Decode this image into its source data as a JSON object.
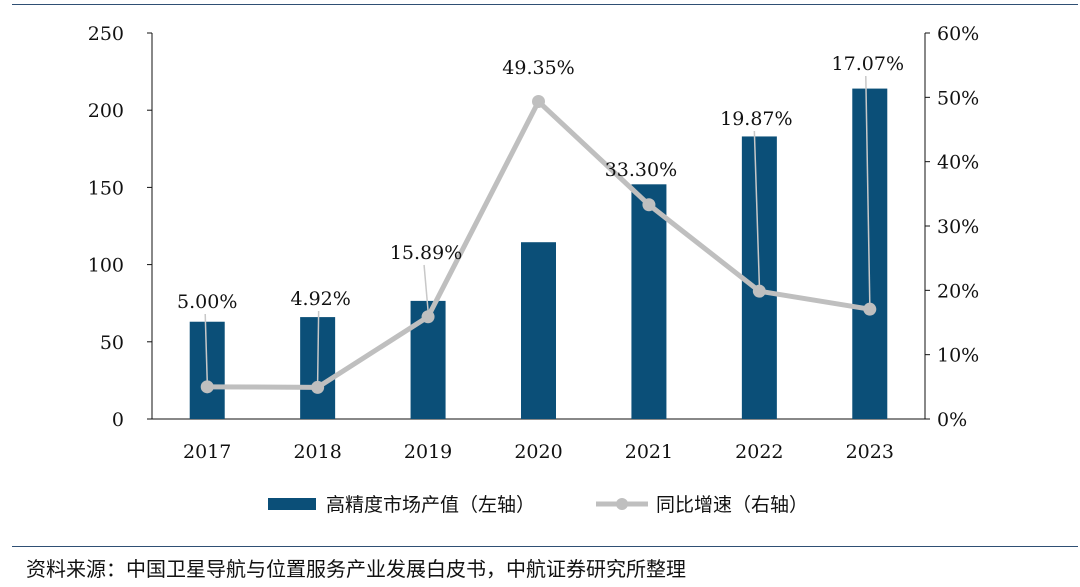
{
  "chart_data": {
    "type": "bar",
    "categories": [
      "2017",
      "2018",
      "2019",
      "2020",
      "2021",
      "2022",
      "2023"
    ],
    "series": [
      {
        "name": "高精度市场产值（左轴）",
        "type": "bar",
        "axis": "left",
        "color": "#0b4f78",
        "values": [
          63,
          66,
          76.5,
          114.5,
          152,
          183,
          214
        ]
      },
      {
        "name": "同比增速（右轴）",
        "type": "line",
        "axis": "right",
        "color": "#bfbfbf",
        "values": [
          5.0,
          4.92,
          15.89,
          49.35,
          33.3,
          19.87,
          17.07
        ],
        "labels": [
          "5.00%",
          "4.92%",
          "15.89%",
          "49.35%",
          "33.30%",
          "19.87%",
          "17.07%"
        ]
      }
    ],
    "y_left": {
      "lim": [
        0,
        250
      ],
      "ticks": [
        "0",
        "50",
        "100",
        "150",
        "200",
        "250"
      ]
    },
    "y_right": {
      "lim": [
        0,
        60
      ],
      "ticks": [
        "0%",
        "10%",
        "20%",
        "30%",
        "40%",
        "50%",
        "60%"
      ]
    },
    "grid": false,
    "legend_position": "bottom"
  },
  "source_note": "资料来源：中国卫星导航与位置服务产业发展白皮书，中航证券研究所整理"
}
